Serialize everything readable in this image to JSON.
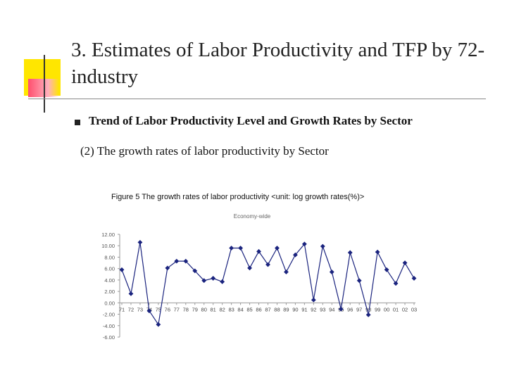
{
  "slide": {
    "title": "3. Estimates of Labor Productivity and TFP by 72-industry",
    "bullet": "Trend of Labor Productivity Level and Growth Rates by Sector",
    "sub": "(2) The growth rates of labor productivity by Sector",
    "figure_caption": "Figure 5 The growth rates of labor productivity <unit: log growth rates(%)>"
  },
  "chart_data": {
    "type": "line",
    "title": "Economy-wide",
    "xlabel": "",
    "ylabel": "",
    "categories": [
      "71",
      "72",
      "73",
      "74",
      "75",
      "76",
      "77",
      "78",
      "79",
      "80",
      "81",
      "82",
      "83",
      "84",
      "85",
      "86",
      "87",
      "88",
      "89",
      "90",
      "91",
      "92",
      "93",
      "94",
      "95",
      "96",
      "97",
      "98",
      "99",
      "00",
      "01",
      "02",
      "03"
    ],
    "series": [
      {
        "values": [
          5.8,
          1.6,
          10.6,
          -1.4,
          -3.8,
          6.1,
          7.3,
          7.3,
          5.6,
          3.9,
          4.3,
          3.7,
          9.6,
          9.6,
          6.1,
          9.0,
          6.7,
          9.6,
          5.4,
          8.4,
          10.3,
          0.5,
          9.9,
          5.4,
          -1.1,
          8.8,
          3.9,
          -2.1,
          8.9,
          5.8,
          3.4,
          7.0,
          4.3
        ],
        "color": "#1a237e"
      }
    ],
    "y_ticks": [
      "12.00",
      "10.00",
      "8.00",
      "6.00",
      "4.00",
      "2.00",
      "0.00",
      "-2.00",
      "-4.00",
      "-6.00"
    ],
    "ylim": [
      -6,
      12
    ],
    "grid": false,
    "legend": "none"
  }
}
